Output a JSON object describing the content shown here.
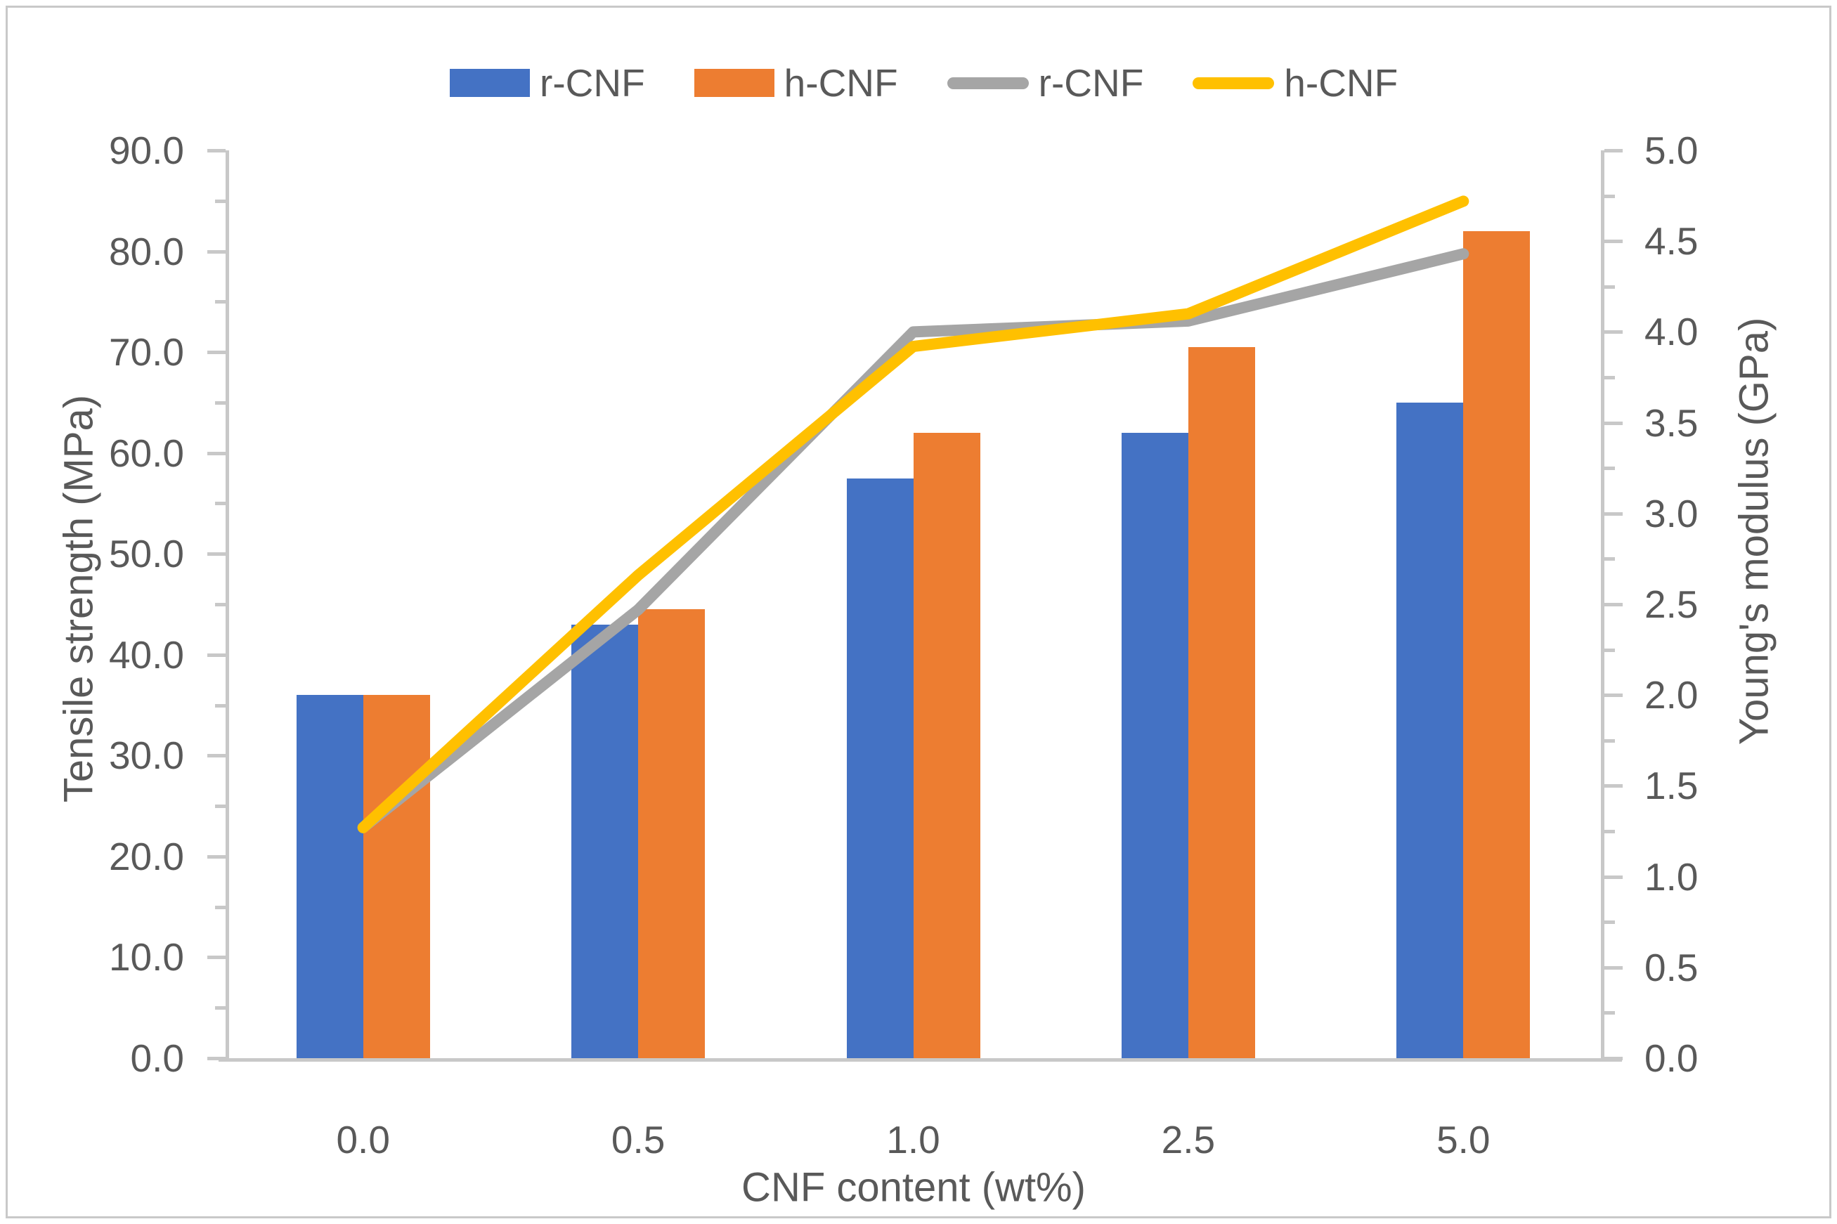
{
  "figure": {
    "background": "#ffffff",
    "border_color": "#c9c9c9",
    "axis_color": "#c8c8c8",
    "text_color": "#595959"
  },
  "legend": {
    "position": "top",
    "items": [
      {
        "label": "r-CNF",
        "swatch": "bar",
        "color": "#4472C4"
      },
      {
        "label": "h-CNF",
        "swatch": "bar",
        "color": "#ED7D31"
      },
      {
        "label": "r-CNF",
        "swatch": "line",
        "color": "#A5A5A5"
      },
      {
        "label": "h-CNF",
        "swatch": "line",
        "color": "#FFC000"
      }
    ]
  },
  "chart_data": {
    "type": "bar+line combo, dual y-axes",
    "categories": [
      "0.0",
      "0.5",
      "1.0",
      "2.5",
      "5.0"
    ],
    "bar_series": [
      {
        "name": "r-CNF",
        "axis": "left",
        "color": "#4472C4",
        "values": [
          36.0,
          43.0,
          57.5,
          62.0,
          65.0
        ]
      },
      {
        "name": "h-CNF",
        "axis": "left",
        "color": "#ED7D31",
        "values": [
          36.0,
          44.5,
          62.0,
          70.5,
          82.0
        ]
      }
    ],
    "line_series": [
      {
        "name": "r-CNF",
        "axis": "right",
        "color": "#A5A5A5",
        "values": [
          1.27,
          2.47,
          4.0,
          4.06,
          4.43
        ]
      },
      {
        "name": "h-CNF",
        "axis": "right",
        "color": "#FFC000",
        "values": [
          1.27,
          2.66,
          3.92,
          4.1,
          4.72
        ]
      }
    ],
    "left_axis": {
      "title": "Tensile strength (MPa)",
      "range": [
        0,
        90
      ],
      "major_step": 10,
      "minor_step": 5,
      "tick_labels": [
        "0.0",
        "10.0",
        "20.0",
        "30.0",
        "40.0",
        "50.0",
        "60.0",
        "70.0",
        "80.0",
        "90.0"
      ]
    },
    "right_axis": {
      "title": "Young's modulus (GPa)",
      "range": [
        0,
        5
      ],
      "major_step": 0.5,
      "minor_step": 0.25,
      "tick_labels": [
        "0.0",
        "0.5",
        "1.0",
        "1.5",
        "2.0",
        "2.5",
        "3.0",
        "3.5",
        "4.0",
        "4.5",
        "5.0"
      ]
    },
    "xlabel": "CNF content (wt%)",
    "grid": false,
    "legend_position": "top"
  }
}
